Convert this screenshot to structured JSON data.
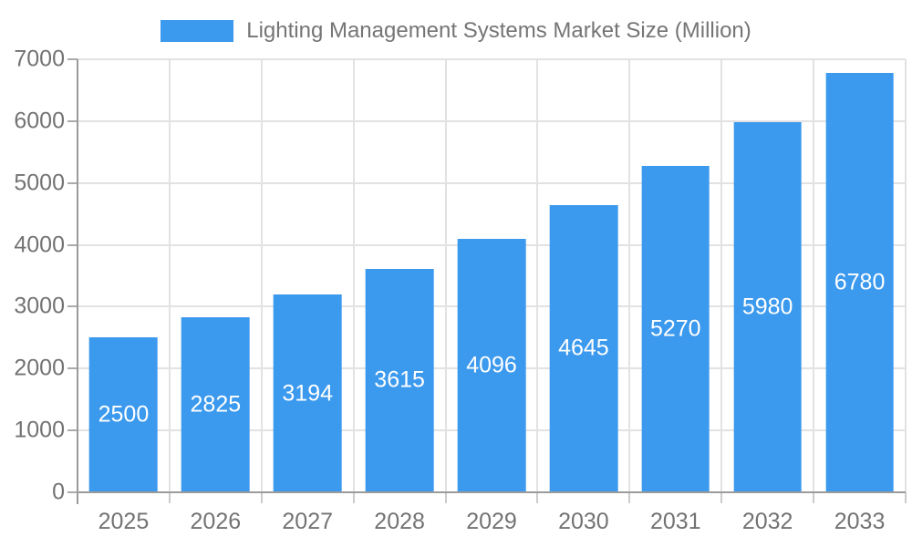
{
  "chart_data": {
    "type": "bar",
    "title": "Lighting Management Systems Market Size (Million)",
    "categories": [
      "2025",
      "2026",
      "2027",
      "2028",
      "2029",
      "2030",
      "2031",
      "2032",
      "2033"
    ],
    "values": [
      2500,
      2825,
      3194,
      3615,
      4096,
      4645,
      5270,
      5980,
      6780
    ],
    "xlabel": "",
    "ylabel": "",
    "ylim": [
      0,
      7000
    ],
    "yticks": [
      0,
      1000,
      2000,
      3000,
      4000,
      5000,
      6000,
      7000
    ],
    "grid": true,
    "legend_position": "top-center",
    "bar_width_ratio": 0.74,
    "colors": {
      "bar": "#3b99ee",
      "bar_label_text": "#ffffff",
      "axis_text": "#737373",
      "legend_text": "#757575",
      "grid_line": "#e2e2e2",
      "axis_line": "#9b9b9b",
      "tick_mark": "#cccccc"
    }
  }
}
